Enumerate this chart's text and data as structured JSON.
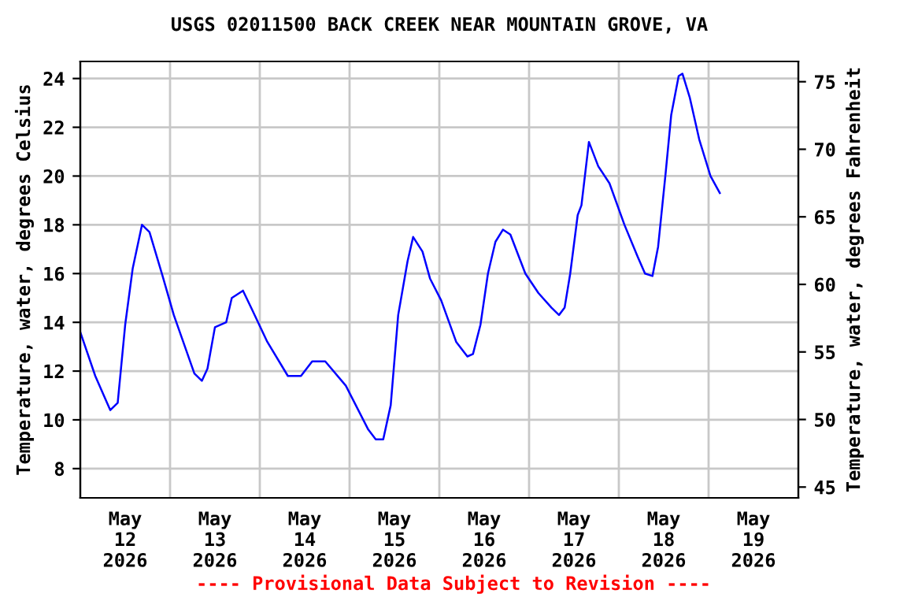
{
  "chart_data": {
    "type": "line",
    "title": "USGS 02011500 BACK CREEK NEAR MOUNTAIN GROVE, VA",
    "ylabel": "Temperature, water, degrees Celsius",
    "y2label": "Temperature, water, degrees Fahrenheit",
    "annotations": [
      "---- Provisional Data Subject to Revision ----"
    ],
    "x": [
      "2026-05-12T00:00",
      "2026-05-12T04:00",
      "2026-05-12T08:00",
      "2026-05-12T10:00",
      "2026-05-12T12:00",
      "2026-05-12T14:00",
      "2026-05-12T16:30",
      "2026-05-12T18:30",
      "2026-05-12T22:00",
      "2026-05-13T01:00",
      "2026-05-13T06:30",
      "2026-05-13T08:30",
      "2026-05-13T10:00",
      "2026-05-13T12:00",
      "2026-05-13T15:00",
      "2026-05-13T16:30",
      "2026-05-13T19:30",
      "2026-05-13T22:00",
      "2026-05-14T02:00",
      "2026-05-14T07:30",
      "2026-05-14T11:00",
      "2026-05-14T14:00",
      "2026-05-14T17:30",
      "2026-05-14T23:00",
      "2026-05-15T05:00",
      "2026-05-15T07:00",
      "2026-05-15T09:00",
      "2026-05-15T11:00",
      "2026-05-15T13:00",
      "2026-05-15T15:30",
      "2026-05-15T17:00",
      "2026-05-15T19:30",
      "2026-05-15T21:30",
      "2026-05-16T00:30",
      "2026-05-16T04:30",
      "2026-05-16T07:30",
      "2026-05-16T09:00",
      "2026-05-16T11:00",
      "2026-05-16T13:00",
      "2026-05-16T15:00",
      "2026-05-16T17:00",
      "2026-05-16T19:00",
      "2026-05-16T23:00",
      "2026-05-17T02:30",
      "2026-05-17T06:00",
      "2026-05-17T08:00",
      "2026-05-17T09:30",
      "2026-05-17T11:00",
      "2026-05-17T13:00",
      "2026-05-17T14:00",
      "2026-05-17T16:00",
      "2026-05-17T18:30",
      "2026-05-17T21:30",
      "2026-05-18T01:30",
      "2026-05-18T05:00",
      "2026-05-18T07:00",
      "2026-05-18T09:00",
      "2026-05-18T10:30",
      "2026-05-18T12:30",
      "2026-05-18T14:00",
      "2026-05-18T16:00",
      "2026-05-18T17:00",
      "2026-05-18T19:00",
      "2026-05-18T21:30",
      "2026-05-19T00:30",
      "2026-05-19T03:00"
    ],
    "series": [
      {
        "color": "#0000ff",
        "values": [
          13.6,
          11.8,
          10.4,
          10.7,
          13.9,
          16.2,
          18.0,
          17.7,
          15.9,
          14.3,
          11.9,
          11.6,
          12.1,
          13.8,
          14.0,
          15.0,
          15.3,
          14.5,
          13.2,
          11.8,
          11.8,
          12.4,
          12.4,
          11.4,
          9.6,
          9.2,
          9.2,
          10.6,
          14.3,
          16.5,
          17.5,
          16.9,
          15.8,
          14.9,
          13.2,
          12.6,
          12.7,
          13.9,
          16.0,
          17.3,
          17.8,
          17.6,
          16.0,
          15.2,
          14.6,
          14.3,
          14.6,
          16.0,
          18.4,
          18.8,
          21.4,
          20.4,
          19.7,
          18.0,
          16.7,
          16.0,
          15.9,
          17.1,
          20.1,
          22.5,
          24.1,
          24.2,
          23.2,
          21.5,
          20.0,
          19.3
        ]
      }
    ],
    "xlim": [
      "2026-05-12T00:00",
      "2026-05-20T00:00"
    ],
    "xticks": [
      {
        "value": "2026-05-12T12:00",
        "label": "May\n12\n2026"
      },
      {
        "value": "2026-05-13T12:00",
        "label": "May\n13\n2026"
      },
      {
        "value": "2026-05-14T12:00",
        "label": "May\n14\n2026"
      },
      {
        "value": "2026-05-15T12:00",
        "label": "May\n15\n2026"
      },
      {
        "value": "2026-05-16T12:00",
        "label": "May\n16\n2026"
      },
      {
        "value": "2026-05-17T12:00",
        "label": "May\n17\n2026"
      },
      {
        "value": "2026-05-18T12:00",
        "label": "May\n18\n2026"
      },
      {
        "value": "2026-05-19T12:00",
        "label": "May\n19\n2026"
      },
      {
        "value": "2026-05-13T00:00",
        "label": null
      },
      {
        "value": "2026-05-14T00:00",
        "label": null
      },
      {
        "value": "2026-05-15T00:00",
        "label": null
      },
      {
        "value": "2026-05-16T00:00",
        "label": null
      },
      {
        "value": "2026-05-17T00:00",
        "label": null
      },
      {
        "value": "2026-05-18T00:00",
        "label": null
      },
      {
        "value": "2026-05-19T00:00",
        "label": null
      }
    ],
    "ylim": [
      6.8,
      24.7
    ],
    "yticks": [
      8,
      10,
      12,
      14,
      16,
      18,
      20,
      22,
      24
    ],
    "y2lim": [
      44.2,
      76.5
    ],
    "y2ticks": [
      45,
      50,
      55,
      60,
      65,
      70,
      75
    ],
    "grid": true,
    "line_style": "solid",
    "marker": "none"
  }
}
